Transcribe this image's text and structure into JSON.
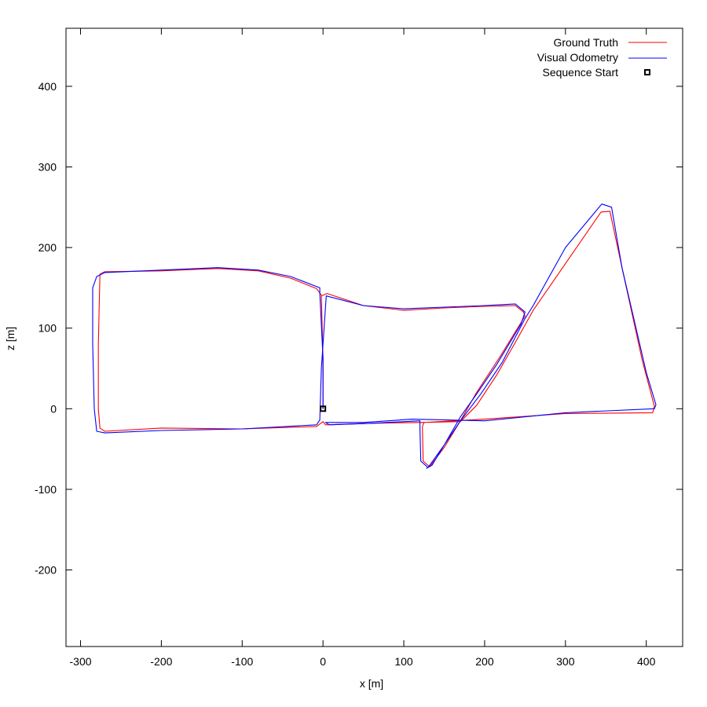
{
  "chart_data": {
    "type": "line",
    "xlabel": "x [m]",
    "ylabel": "z [m]",
    "xlim": [
      -318,
      445
    ],
    "ylim": [
      -295,
      472
    ],
    "xticks": [
      -300,
      -200,
      -100,
      0,
      100,
      200,
      300,
      400
    ],
    "yticks": [
      -200,
      -100,
      0,
      100,
      200,
      300,
      400
    ],
    "xtick_labels": [
      "-300",
      "-200",
      "-100",
      "0",
      "100",
      "200",
      "300",
      "400"
    ],
    "ytick_labels": [
      "-200",
      "-100",
      "0",
      "100",
      "200",
      "300",
      "400"
    ],
    "grid": false,
    "legend_position": "top-right",
    "series": [
      {
        "name": "Ground Truth",
        "color": "#ff0000",
        "points": [
          [
            0,
            0
          ],
          [
            0,
            60
          ],
          [
            -2,
            140
          ],
          [
            5,
            143
          ],
          [
            50,
            128
          ],
          [
            100,
            122
          ],
          [
            150,
            125
          ],
          [
            200,
            127
          ],
          [
            238,
            128
          ],
          [
            248,
            120
          ],
          [
            250,
            115
          ],
          [
            220,
            66
          ],
          [
            190,
            20
          ],
          [
            170,
            -15
          ],
          [
            150,
            -48
          ],
          [
            132,
            -72
          ],
          [
            124,
            -65
          ],
          [
            123,
            -22
          ],
          [
            125,
            -17
          ],
          [
            200,
            -13
          ],
          [
            300,
            -6
          ],
          [
            408,
            -5
          ],
          [
            410,
            3
          ],
          [
            395,
            60
          ],
          [
            370,
            175
          ],
          [
            355,
            245
          ],
          [
            344,
            244
          ],
          [
            300,
            180
          ],
          [
            260,
            122
          ],
          [
            240,
            86
          ],
          [
            215,
            42
          ],
          [
            190,
            4
          ],
          [
            170,
            -16
          ],
          [
            120,
            -17
          ],
          [
            60,
            -18
          ],
          [
            3,
            -20
          ],
          [
            0,
            -16
          ],
          [
            -8,
            -22
          ],
          [
            -100,
            -25
          ],
          [
            -200,
            -24
          ],
          [
            -270,
            -28
          ],
          [
            -276,
            -24
          ],
          [
            -278,
            0
          ],
          [
            -278,
            80
          ],
          [
            -276,
            167
          ],
          [
            -270,
            170
          ],
          [
            -200,
            171
          ],
          [
            -130,
            174
          ],
          [
            -80,
            171
          ],
          [
            -40,
            162
          ],
          [
            -8,
            149
          ],
          [
            -2,
            141
          ]
        ]
      },
      {
        "name": "Visual Odometry",
        "color": "#0000ff",
        "points": [
          [
            0,
            0
          ],
          [
            0,
            62
          ],
          [
            -4,
            144
          ],
          [
            -4,
            150
          ],
          [
            -40,
            164
          ],
          [
            -80,
            172
          ],
          [
            -130,
            175
          ],
          [
            -200,
            172
          ],
          [
            -270,
            169
          ],
          [
            -280,
            164
          ],
          [
            -285,
            150
          ],
          [
            -285,
            80
          ],
          [
            -283,
            0
          ],
          [
            -280,
            -28
          ],
          [
            -270,
            -30
          ],
          [
            -200,
            -27
          ],
          [
            -100,
            -25
          ],
          [
            -8,
            -20
          ],
          [
            -4,
            -14
          ],
          [
            -2,
            50
          ],
          [
            4,
            140
          ],
          [
            50,
            128
          ],
          [
            100,
            124
          ],
          [
            150,
            126
          ],
          [
            200,
            128
          ],
          [
            238,
            130
          ],
          [
            250,
            120
          ],
          [
            245,
            105
          ],
          [
            215,
            55
          ],
          [
            190,
            18
          ],
          [
            170,
            -10
          ],
          [
            150,
            -45
          ],
          [
            130,
            -73
          ],
          [
            121,
            -65
          ],
          [
            120,
            -25
          ],
          [
            120,
            -15
          ],
          [
            60,
            -18
          ],
          [
            8,
            -20
          ],
          [
            3,
            -17
          ],
          [
            50,
            -17
          ],
          [
            110,
            -13
          ],
          [
            200,
            -15
          ],
          [
            300,
            -5
          ],
          [
            410,
            0
          ],
          [
            412,
            5
          ],
          [
            400,
            45
          ],
          [
            370,
            175
          ],
          [
            357,
            250
          ],
          [
            345,
            254
          ],
          [
            300,
            200
          ],
          [
            260,
            128
          ],
          [
            250,
            112
          ],
          [
            222,
            58
          ],
          [
            195,
            18
          ],
          [
            170,
            -15
          ],
          [
            150,
            -45
          ],
          [
            135,
            -70
          ],
          [
            128,
            -74
          ]
        ]
      }
    ],
    "markers": [
      {
        "name": "Sequence Start",
        "x": 0,
        "y": 0,
        "shape": "square",
        "color": "#000000"
      }
    ]
  },
  "legend": {
    "ground_truth_label": "Ground Truth",
    "visual_odometry_label": "Visual Odometry",
    "sequence_start_label": "Sequence Start"
  }
}
